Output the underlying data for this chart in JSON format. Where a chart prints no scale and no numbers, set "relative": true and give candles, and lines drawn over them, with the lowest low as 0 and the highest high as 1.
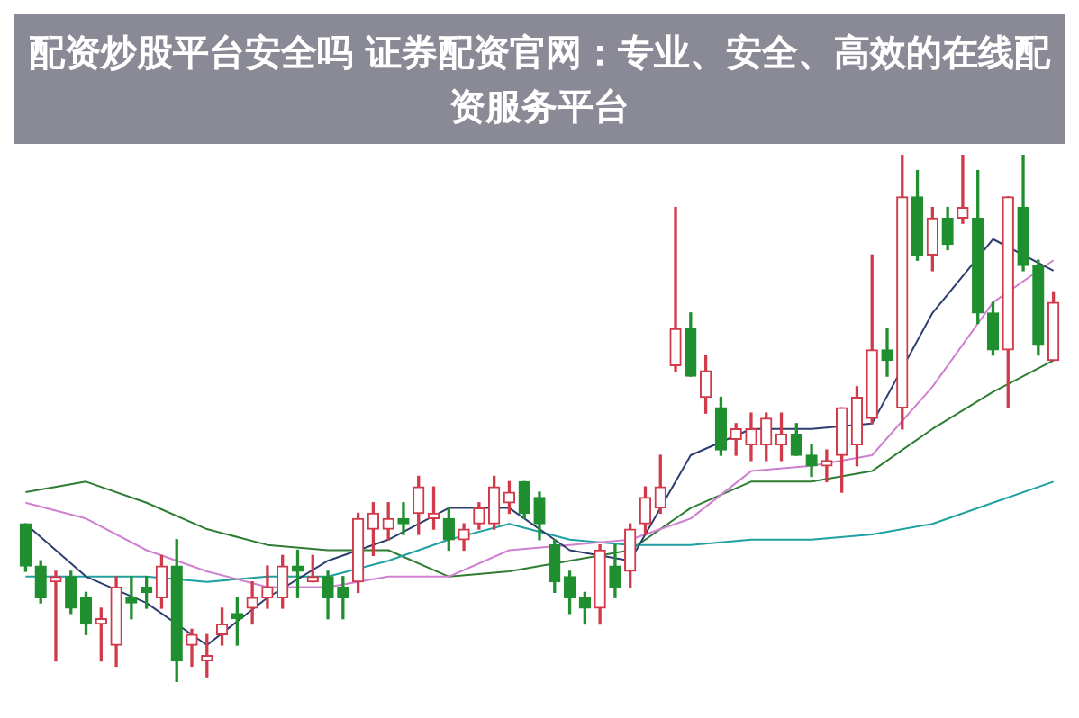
{
  "chart_data": {
    "type": "candlestick",
    "title": "配资炒股平台安全吗 证券配资官网：专业、安全、高效的在线配资服务平台",
    "relative": true,
    "categories": [
      null,
      null,
      null,
      null,
      null,
      null,
      null,
      null,
      null,
      null,
      null,
      null,
      null,
      null,
      null,
      null,
      null,
      null,
      null,
      null,
      null,
      null,
      null,
      null,
      null,
      null,
      null,
      null,
      null,
      null,
      null,
      null,
      null,
      null,
      null,
      null,
      null,
      null,
      null,
      null,
      null,
      null,
      null,
      null,
      null,
      null,
      null,
      null,
      null,
      null,
      null,
      null,
      null,
      null,
      null,
      null,
      null,
      null,
      null,
      null,
      null,
      null,
      null,
      null,
      null,
      null,
      null,
      null,
      null
    ],
    "ohlc": [
      [
        0.3,
        0.3,
        0.21,
        0.22
      ],
      [
        0.22,
        0.23,
        0.15,
        0.16
      ],
      [
        0.19,
        0.21,
        0.04,
        0.2
      ],
      [
        0.2,
        0.21,
        0.13,
        0.14
      ],
      [
        0.16,
        0.17,
        0.09,
        0.11
      ],
      [
        0.11,
        0.14,
        0.04,
        0.12
      ],
      [
        0.07,
        0.2,
        0.03,
        0.18
      ],
      [
        0.16,
        0.2,
        0.12,
        0.15
      ],
      [
        0.18,
        0.2,
        0.14,
        0.17
      ],
      [
        0.16,
        0.24,
        0.14,
        0.22
      ],
      [
        0.22,
        0.27,
        0.0,
        0.04
      ],
      [
        0.07,
        0.1,
        0.03,
        0.09
      ],
      [
        0.04,
        0.09,
        0.01,
        0.05
      ],
      [
        0.09,
        0.14,
        0.07,
        0.11
      ],
      [
        0.13,
        0.16,
        0.07,
        0.12
      ],
      [
        0.14,
        0.19,
        0.11,
        0.16
      ],
      [
        0.16,
        0.22,
        0.14,
        0.18
      ],
      [
        0.16,
        0.24,
        0.14,
        0.22
      ],
      [
        0.22,
        0.25,
        0.16,
        0.21
      ],
      [
        0.19,
        0.24,
        0.19,
        0.2
      ],
      [
        0.2,
        0.21,
        0.12,
        0.16
      ],
      [
        0.18,
        0.2,
        0.12,
        0.16
      ],
      [
        0.19,
        0.32,
        0.17,
        0.31
      ],
      [
        0.29,
        0.34,
        0.24,
        0.32
      ],
      [
        0.29,
        0.34,
        0.27,
        0.31
      ],
      [
        0.31,
        0.34,
        0.28,
        0.3
      ],
      [
        0.32,
        0.39,
        0.28,
        0.37
      ],
      [
        0.31,
        0.37,
        0.29,
        0.32
      ],
      [
        0.31,
        0.33,
        0.25,
        0.27
      ],
      [
        0.27,
        0.3,
        0.25,
        0.29
      ],
      [
        0.3,
        0.34,
        0.29,
        0.33
      ],
      [
        0.3,
        0.39,
        0.29,
        0.37
      ],
      [
        0.34,
        0.38,
        0.32,
        0.36
      ],
      [
        0.38,
        0.38,
        0.31,
        0.32
      ],
      [
        0.35,
        0.36,
        0.27,
        0.3
      ],
      [
        0.26,
        0.27,
        0.17,
        0.19
      ],
      [
        0.2,
        0.21,
        0.13,
        0.16
      ],
      [
        0.16,
        0.17,
        0.11,
        0.14
      ],
      [
        0.14,
        0.26,
        0.11,
        0.25
      ],
      [
        0.22,
        0.26,
        0.16,
        0.18
      ],
      [
        0.21,
        0.3,
        0.18,
        0.29
      ],
      [
        0.3,
        0.37,
        0.28,
        0.35
      ],
      [
        0.33,
        0.43,
        0.32,
        0.37
      ],
      [
        0.6,
        0.9,
        0.59,
        0.67
      ],
      [
        0.67,
        0.7,
        0.58,
        0.58
      ],
      [
        0.54,
        0.62,
        0.51,
        0.59
      ],
      [
        0.52,
        0.54,
        0.43,
        0.44
      ],
      [
        0.46,
        0.49,
        0.43,
        0.48
      ],
      [
        0.45,
        0.51,
        0.42,
        0.48
      ],
      [
        0.45,
        0.51,
        0.42,
        0.5
      ],
      [
        0.45,
        0.51,
        0.42,
        0.47
      ],
      [
        0.47,
        0.49,
        0.43,
        0.43
      ],
      [
        0.43,
        0.45,
        0.39,
        0.41
      ],
      [
        0.41,
        0.44,
        0.38,
        0.42
      ],
      [
        0.43,
        0.52,
        0.36,
        0.52
      ],
      [
        0.45,
        0.56,
        0.41,
        0.54
      ],
      [
        0.5,
        0.81,
        0.49,
        0.63
      ],
      [
        0.63,
        0.67,
        0.58,
        0.61
      ],
      [
        0.52,
        1.0,
        0.48,
        0.92
      ],
      [
        0.92,
        0.97,
        0.8,
        0.81
      ],
      [
        0.81,
        0.9,
        0.78,
        0.88
      ],
      [
        0.88,
        0.9,
        0.82,
        0.83
      ],
      [
        0.88,
        1.0,
        0.87,
        0.9
      ],
      [
        0.88,
        0.97,
        0.68,
        0.7
      ],
      [
        0.7,
        0.72,
        0.62,
        0.63
      ],
      [
        0.63,
        0.92,
        0.52,
        0.92
      ],
      [
        0.9,
        1.0,
        0.78,
        0.79
      ],
      [
        0.79,
        0.8,
        0.62,
        0.64
      ],
      [
        0.61,
        0.74,
        0.61,
        0.72
      ]
    ],
    "colors": [
      "#1f8f2f",
      "#1f8f2f",
      "#d03a4a",
      "#1f8f2f",
      "#1f8f2f",
      "#d03a4a",
      "#d03a4a",
      "#1f8f2f",
      "#1f8f2f",
      "#d03a4a",
      "#1f8f2f",
      "#d03a4a",
      "#d03a4a",
      "#d03a4a",
      "#1f8f2f",
      "#d03a4a",
      "#d03a4a",
      "#d03a4a",
      "#1f8f2f",
      "#d03a4a",
      "#1f8f2f",
      "#1f8f2f",
      "#d03a4a",
      "#d03a4a",
      "#d03a4a",
      "#1f8f2f",
      "#d03a4a",
      "#d03a4a",
      "#1f8f2f",
      "#d03a4a",
      "#d03a4a",
      "#d03a4a",
      "#d03a4a",
      "#1f8f2f",
      "#1f8f2f",
      "#1f8f2f",
      "#1f8f2f",
      "#1f8f2f",
      "#d03a4a",
      "#1f8f2f",
      "#d03a4a",
      "#d03a4a",
      "#d03a4a",
      "#d03a4a",
      "#1f8f2f",
      "#d03a4a",
      "#1f8f2f",
      "#d03a4a",
      "#d03a4a",
      "#d03a4a",
      "#d03a4a",
      "#1f8f2f",
      "#1f8f2f",
      "#d03a4a",
      "#d03a4a",
      "#d03a4a",
      "#d03a4a",
      "#1f8f2f",
      "#d03a4a",
      "#1f8f2f",
      "#d03a4a",
      "#1f8f2f",
      "#d03a4a",
      "#1f8f2f",
      "#1f8f2f",
      "#d03a4a",
      "#1f8f2f",
      "#1f8f2f",
      "#d03a4a"
    ],
    "series": [
      {
        "type": "line",
        "color": "#2c3e6e",
        "values": [
          0.3,
          null,
          null,
          null,
          0.2,
          null,
          null,
          null,
          0.15,
          null,
          null,
          null,
          0.07,
          null,
          null,
          null,
          0.16,
          null,
          null,
          null,
          0.23,
          null,
          null,
          null,
          0.27,
          null,
          null,
          null,
          0.33,
          null,
          null,
          null,
          0.33,
          null,
          null,
          null,
          0.25,
          null,
          null,
          null,
          0.23,
          null,
          null,
          null,
          0.43,
          null,
          null,
          null,
          0.48,
          null,
          null,
          null,
          0.48,
          null,
          null,
          null,
          0.49,
          null,
          null,
          null,
          0.7,
          null,
          null,
          null,
          0.84,
          null,
          null,
          null,
          0.78
        ]
      },
      {
        "type": "line",
        "color": "#d080d0",
        "values": [
          0.34,
          null,
          null,
          null,
          0.31,
          null,
          null,
          null,
          0.25,
          null,
          null,
          null,
          0.21,
          null,
          null,
          null,
          0.18,
          null,
          null,
          null,
          0.18,
          null,
          null,
          null,
          0.2,
          null,
          null,
          null,
          0.2,
          null,
          null,
          null,
          0.25,
          null,
          null,
          null,
          0.26,
          null,
          null,
          null,
          0.27,
          null,
          null,
          null,
          0.31,
          null,
          null,
          null,
          0.4,
          null,
          null,
          null,
          0.41,
          null,
          null,
          null,
          0.43,
          null,
          null,
          null,
          0.56,
          null,
          null,
          null,
          0.72,
          null,
          null,
          null,
          0.8
        ]
      },
      {
        "type": "line",
        "color": "#20a0a0",
        "values": [
          0.2,
          null,
          null,
          null,
          0.2,
          null,
          null,
          null,
          0.2,
          null,
          null,
          null,
          0.19,
          null,
          null,
          null,
          0.2,
          null,
          null,
          null,
          0.2,
          null,
          null,
          null,
          0.23,
          null,
          null,
          null,
          0.27,
          null,
          null,
          null,
          0.3,
          null,
          null,
          null,
          0.27,
          null,
          null,
          null,
          0.26,
          null,
          null,
          null,
          0.26,
          null,
          null,
          null,
          0.27,
          null,
          null,
          null,
          0.27,
          null,
          null,
          null,
          0.28,
          null,
          null,
          null,
          0.3,
          null,
          null,
          null,
          0.34,
          null,
          null,
          null,
          0.38
        ]
      },
      {
        "type": "line",
        "color": "#2e7d32",
        "values": [
          0.36,
          null,
          null,
          null,
          0.38,
          null,
          null,
          null,
          0.34,
          null,
          null,
          null,
          0.29,
          null,
          null,
          null,
          0.26,
          null,
          null,
          null,
          0.25,
          null,
          null,
          null,
          0.25,
          null,
          null,
          null,
          0.2,
          null,
          null,
          null,
          0.21,
          null,
          null,
          null,
          0.23,
          null,
          null,
          null,
          0.25,
          null,
          null,
          null,
          0.33,
          null,
          null,
          null,
          0.38,
          null,
          null,
          null,
          0.38,
          null,
          null,
          null,
          0.4,
          null,
          null,
          null,
          0.48,
          null,
          null,
          null,
          0.55,
          null,
          null,
          null,
          0.61
        ]
      }
    ]
  }
}
